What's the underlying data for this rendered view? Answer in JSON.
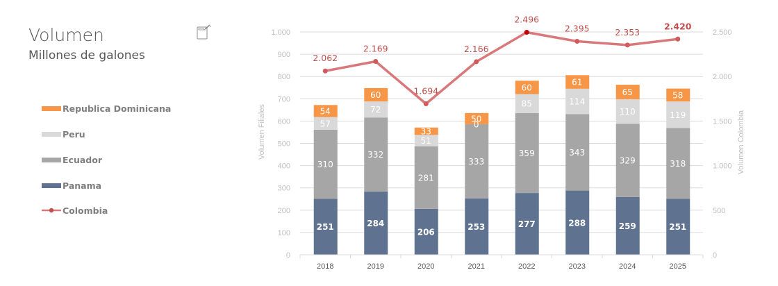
{
  "header": {
    "title": "Volumen",
    "subtitle": "Millones de galones",
    "icon": "fuel-can-icon"
  },
  "legend": {
    "items": [
      {
        "label": "Republica Dominicana",
        "type": "bar",
        "color": "#F79646"
      },
      {
        "label": "Peru",
        "type": "bar",
        "color": "#D9D9D9"
      },
      {
        "label": "Ecuador",
        "type": "bar",
        "color": "#A6A6A6"
      },
      {
        "label": "Panama",
        "type": "bar",
        "color": "#5F7391"
      },
      {
        "label": "Colombia",
        "type": "line",
        "color": "#D9787A"
      }
    ]
  },
  "chart_data": {
    "type": "bar",
    "subtype": "stacked bar with line on secondary axis",
    "title": "Volumen",
    "subtitle": "Millones de galones",
    "categories": [
      "2018",
      "2019",
      "2020",
      "2021",
      "2022",
      "2023",
      "2024",
      "2025"
    ],
    "series": [
      {
        "name": "Panama",
        "type": "bar",
        "axis": "left",
        "color": "#5F7391",
        "values": [
          251,
          284,
          206,
          253,
          277,
          288,
          259,
          251
        ]
      },
      {
        "name": "Ecuador",
        "type": "bar",
        "axis": "left",
        "color": "#A6A6A6",
        "values": [
          310,
          332,
          281,
          333,
          359,
          343,
          329,
          318
        ]
      },
      {
        "name": "Peru",
        "type": "bar",
        "axis": "left",
        "color": "#D9D9D9",
        "values": [
          57,
          72,
          51,
          0,
          85,
          114,
          110,
          119
        ]
      },
      {
        "name": "Republica Dominicana",
        "type": "bar",
        "axis": "left",
        "color": "#F79646",
        "values": [
          54,
          60,
          33,
          50,
          60,
          61,
          65,
          58
        ]
      },
      {
        "name": "Colombia",
        "type": "line",
        "axis": "right",
        "color": "#D9787A",
        "values": [
          2062,
          2169,
          1694,
          2166,
          2496,
          2395,
          2353,
          2420
        ],
        "labels": [
          "2.062",
          "2.169",
          "1.694",
          "2.166",
          "2.496",
          "2.395",
          "2.353",
          "2.420"
        ]
      }
    ],
    "ylabel": "Volumen Filiales",
    "y2label": "Volumen Colombia",
    "xlabel": "",
    "ylim": [
      0,
      1000
    ],
    "y2lim": [
      0,
      2500
    ],
    "yticks": [
      "0",
      "100",
      "200",
      "300",
      "400",
      "500",
      "600",
      "700",
      "800",
      "900",
      "1.000"
    ],
    "y2ticks": [
      "0",
      "500",
      "1.000",
      "1.500",
      "2.000",
      "2.500"
    ],
    "grid": true,
    "legend_position": "left"
  }
}
